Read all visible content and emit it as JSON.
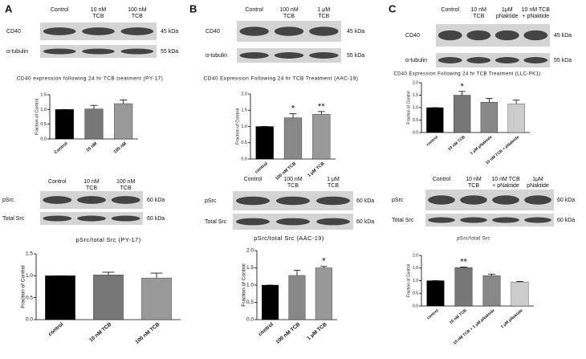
{
  "panel_letters": [
    "A",
    "B",
    "C"
  ],
  "blots": [
    {
      "headers": [
        [
          "Control"
        ],
        [
          "10 nM",
          "TCB"
        ],
        [
          "100 nM",
          "TCB"
        ]
      ],
      "rows": [
        {
          "label": "CD40",
          "kda": "45 kDa"
        },
        {
          "label": "α-tubulin",
          "kda": "55 kDa"
        }
      ]
    },
    {
      "headers": [
        [
          "Control"
        ],
        [
          "10 nM",
          "TCB"
        ],
        [
          "100 nM",
          "TCB"
        ]
      ],
      "rows": [
        {
          "label": "pSrc",
          "kda": "60 kDa"
        },
        {
          "label": "Total Src",
          "kda": "60 kDa"
        }
      ]
    },
    {
      "headers": [
        [
          "Control"
        ],
        [
          "100 nM",
          "TCB"
        ],
        [
          "1 μM",
          "TCB"
        ]
      ],
      "rows": [
        {
          "label": "CD40",
          "kda": "45 kDa"
        },
        {
          "label": "α-tubulin",
          "kda": "55 kDa"
        }
      ]
    },
    {
      "headers": [
        [
          "Control"
        ],
        [
          "100 nM",
          "TCB"
        ],
        [
          "1 μM",
          "TCB"
        ]
      ],
      "rows": [
        {
          "label": "pSrc",
          "kda": "60 kDa"
        },
        {
          "label": "Total Src",
          "kda": "60 kDa"
        }
      ]
    },
    {
      "headers": [
        [
          "Control"
        ],
        [
          "10 nM",
          "TCB"
        ],
        [
          "1μM",
          "pNaktide"
        ],
        [
          "10 nM TCB",
          "+ pNaktide"
        ]
      ],
      "rows": [
        {
          "label": "CD40",
          "kda": "45 kDa"
        },
        {
          "label": "α-tubulin",
          "kda": "55 kDa"
        }
      ]
    },
    {
      "headers": [
        [
          "Control"
        ],
        [
          "10 nM",
          "TCB"
        ],
        [
          "10 nM TCB",
          "+ pNaktide"
        ],
        [
          "1μM",
          "pNaktide"
        ]
      ],
      "rows": [
        {
          "label": "pSrc",
          "kda": "60 kDa"
        },
        {
          "label": "Total Src",
          "kda": "60 kDa"
        }
      ]
    }
  ],
  "chart_data": [
    {
      "type": "bar",
      "title": "CD40 expression following 24 hr TCB treatment (PY-17)",
      "ylabel": "Fraction of Control",
      "categories": [
        "Control",
        "10 nM",
        "100 nM"
      ],
      "values": [
        1.0,
        1.02,
        1.2
      ],
      "errors": [
        0,
        0.12,
        0.12
      ],
      "colors": [
        "#000000",
        "#777777",
        "#999999"
      ],
      "ylim": [
        0,
        1.5
      ],
      "yticks": [
        {
          "value": 0,
          "label": "0.0"
        },
        {
          "value": 0.5,
          "label": "0.5"
        },
        {
          "value": 1,
          "label": "1.0"
        },
        {
          "value": 1.5,
          "label": "1.5"
        }
      ]
    },
    {
      "type": "bar",
      "title": "pSrc/total Src (PY-17)",
      "ylabel": "Fraction of Control",
      "categories": [
        "control",
        "10 nM TCB",
        "100 nM TCB"
      ],
      "values": [
        1.0,
        1.02,
        0.95
      ],
      "errors": [
        0,
        0.06,
        0.11
      ],
      "colors": [
        "#000000",
        "#777777",
        "#999999"
      ],
      "ylim": [
        0,
        1.5
      ],
      "yticks": [
        {
          "value": 0,
          "label": "0.0"
        },
        {
          "value": 0.5,
          "label": "0.5"
        },
        {
          "value": 1,
          "label": "1.0"
        },
        {
          "value": 1.5,
          "label": "1.5"
        }
      ]
    },
    {
      "type": "bar",
      "title": "CD40 Expression Following 24 hr TCB Treatment (AAC-19)",
      "ylabel": "Fraction of Control",
      "categories": [
        "control",
        "100 nM TCB",
        "1 μM TCB"
      ],
      "values": [
        1.0,
        1.27,
        1.38
      ],
      "errors": [
        0,
        0.12,
        0.08
      ],
      "significance": [
        null,
        "*",
        "**"
      ],
      "colors": [
        "#000000",
        "#888888",
        "#999999"
      ],
      "ylim": [
        0,
        2
      ],
      "yticks": [
        {
          "value": 0,
          "label": "0.0"
        },
        {
          "value": 0.5,
          "label": "0.5"
        },
        {
          "value": 1,
          "label": "1.0"
        },
        {
          "value": 1.5,
          "label": "1.5"
        },
        {
          "value": 2,
          "label": "2.0"
        }
      ]
    },
    {
      "type": "bar",
      "title": "pSrc/total Src (AAC-19)",
      "ylabel": "Fraction of Control",
      "categories": [
        "control",
        "100 nM TCB",
        "1 μM TCB"
      ],
      "values": [
        1.0,
        1.28,
        1.5
      ],
      "errors": [
        0,
        0.15,
        0.04
      ],
      "significance": [
        null,
        null,
        "*"
      ],
      "colors": [
        "#000000",
        "#888888",
        "#999999"
      ],
      "ylim": [
        0,
        2
      ],
      "yticks": [
        {
          "value": 0,
          "label": "0.0"
        },
        {
          "value": 0.5,
          "label": "0.5"
        },
        {
          "value": 1,
          "label": "1.0"
        },
        {
          "value": 1.5,
          "label": "1.5"
        },
        {
          "value": 2,
          "label": "2.0"
        }
      ]
    },
    {
      "type": "bar",
      "title": "CD40 Expression Following 24 hr TCB Treatment (LLC-PK1)",
      "ylabel": "Fraction of Control",
      "categories": [
        "control",
        "10 nM TCB",
        "1 μM pNaktide",
        "10 nM TCB + pNaktide"
      ],
      "values": [
        1.0,
        1.5,
        1.22,
        1.15
      ],
      "errors": [
        0,
        0.15,
        0.15,
        0.15
      ],
      "significance": [
        null,
        "*",
        null,
        null
      ],
      "colors": [
        "#000000",
        "#777777",
        "#888888",
        "#cccccc"
      ],
      "ylim": [
        0,
        2
      ],
      "yticks": [
        {
          "value": 0,
          "label": "0.0"
        },
        {
          "value": 0.5,
          "label": "0.5"
        },
        {
          "value": 1,
          "label": "1.0"
        },
        {
          "value": 1.5,
          "label": "1.5"
        },
        {
          "value": 2,
          "label": "2.0"
        }
      ]
    },
    {
      "type": "bar",
      "title": "pSrc/total Src",
      "ylabel": "Fraction of Control",
      "categories": [
        "control",
        "10 nM TCB",
        "10 nM TCB + 1 μM pNaktide",
        "1 μM pNaktide"
      ],
      "values": [
        1.0,
        1.52,
        1.2,
        0.95
      ],
      "errors": [
        0,
        0.02,
        0.06,
        0.02
      ],
      "significance": [
        null,
        "**",
        null,
        null
      ],
      "colors": [
        "#000000",
        "#777777",
        "#888888",
        "#cccccc"
      ],
      "ylim": [
        0,
        2
      ],
      "yticks": [
        {
          "value": 0,
          "label": "0.0"
        },
        {
          "value": 0.5,
          "label": "0.5"
        },
        {
          "value": 1,
          "label": "1.0"
        },
        {
          "value": 1.5,
          "label": "1.5"
        },
        {
          "value": 2,
          "label": "2.0"
        }
      ]
    }
  ]
}
